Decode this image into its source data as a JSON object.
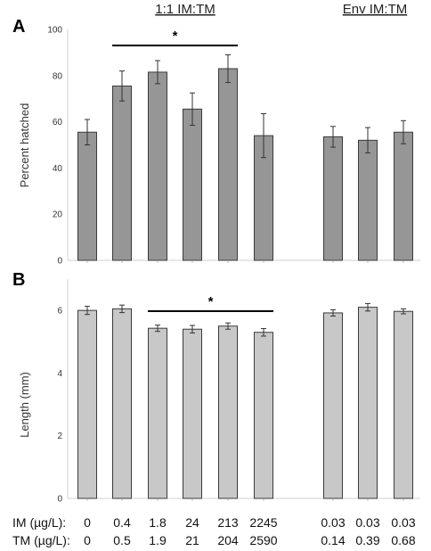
{
  "chart_data": [
    {
      "panel": "A",
      "type": "bar",
      "group_titles": [
        "1:1 IM:TM",
        "Env IM:TM"
      ],
      "ylabel": "Percent hatched",
      "ylim": [
        0,
        100
      ],
      "yticks": [
        0,
        20,
        40,
        60,
        80,
        100
      ],
      "bar_color": "#969696",
      "values": [
        55.5,
        75.5,
        81.5,
        65.5,
        83,
        54,
        null,
        53.5,
        52,
        55.5
      ],
      "errors": [
        5.5,
        6.5,
        5,
        7,
        6,
        9.5,
        null,
        4.5,
        5.5,
        5
      ],
      "significance": {
        "label": "*",
        "from": 1,
        "to": 4
      }
    },
    {
      "panel": "B",
      "type": "bar",
      "ylabel": "Length (mm)",
      "ylim": [
        0,
        7
      ],
      "yticks": [
        0,
        2,
        4,
        6
      ],
      "bar_color": "#c8c8c8",
      "values": [
        6.0,
        6.05,
        5.43,
        5.4,
        5.5,
        5.3,
        null,
        5.92,
        6.1,
        5.97
      ],
      "errors": [
        0.13,
        0.12,
        0.1,
        0.12,
        0.1,
        0.12,
        null,
        0.1,
        0.12,
        0.08
      ],
      "significance": {
        "label": "*",
        "from": 2,
        "to": 5
      }
    }
  ],
  "doses": {
    "im_label": "IM (µg/L):",
    "tm_label": "TM (µg/L):",
    "im_values": [
      "0",
      "0.4",
      "1.8",
      "24",
      "213",
      "2245",
      "",
      "0.03",
      "0.03",
      "0.03"
    ],
    "tm_values": [
      "0",
      "0.5",
      "1.9",
      "21",
      "204",
      "2590",
      "",
      "0.14",
      "0.39",
      "0.68"
    ]
  }
}
